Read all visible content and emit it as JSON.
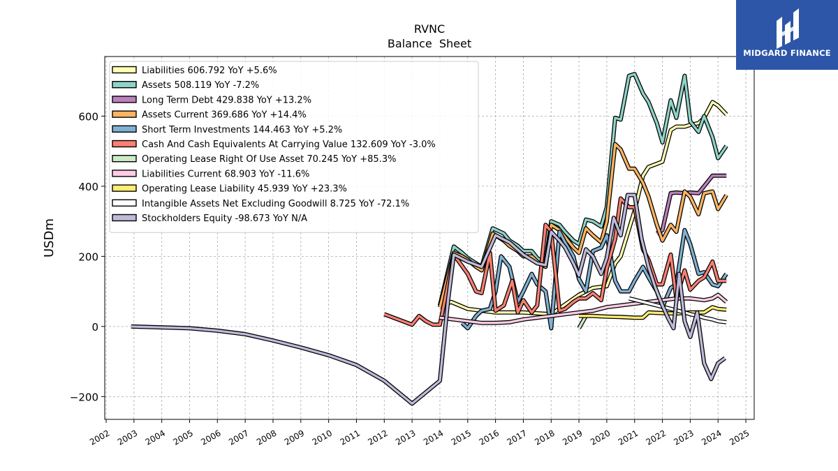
{
  "chart_data": {
    "type": "line",
    "title": "RVNC",
    "subtitle": "Balance  Sheet",
    "ylabel": "USDm",
    "xlabel": "",
    "xlim": [
      2001.95,
      2025.3
    ],
    "ylim": [
      -265,
      770
    ],
    "yticks": [
      -200,
      0,
      200,
      400,
      600
    ],
    "xticks": [
      2002,
      2003,
      2004,
      2005,
      2006,
      2007,
      2008,
      2009,
      2010,
      2011,
      2012,
      2013,
      2014,
      2015,
      2016,
      2017,
      2018,
      2019,
      2020,
      2021,
      2022,
      2023,
      2024,
      2025
    ],
    "grid": true,
    "legend_position": "top-left",
    "series": [
      {
        "name": "Liabilities",
        "legend": "Liabilities  606.792 YoY +5.6%",
        "color": "#ffffb3",
        "x": [
          2014.0,
          2014.4,
          2015.0,
          2016.0,
          2017.0,
          2018.0,
          2019.0,
          2019.5,
          2020.0,
          2020.3,
          2020.5,
          2021.0,
          2021.3,
          2021.5,
          2022.0,
          2022.3,
          2022.5,
          2022.8,
          2023.0,
          2023.3,
          2023.5,
          2023.8,
          2024.0,
          2024.3
        ],
        "y": [
          55,
          70,
          50,
          40,
          40,
          35,
          90,
          110,
          115,
          180,
          200,
          330,
          430,
          455,
          470,
          560,
          570,
          570,
          575,
          580,
          595,
          640,
          630,
          605
        ]
      },
      {
        "name": "Assets",
        "legend": "Assets  508.119 YoY -7.2%",
        "color": "#8dd3c7",
        "x": [
          2014.0,
          2014.5,
          2014.8,
          2015.0,
          2015.3,
          2015.5,
          2015.9,
          2016.3,
          2016.5,
          2016.8,
          2017.0,
          2017.3,
          2017.5,
          2017.8,
          2018.0,
          2018.3,
          2018.5,
          2018.8,
          2019.0,
          2019.25,
          2019.5,
          2019.8,
          2020.0,
          2020.3,
          2020.5,
          2020.8,
          2021.0,
          2021.3,
          2021.5,
          2021.8,
          2022.0,
          2022.3,
          2022.5,
          2022.8,
          2023.0,
          2023.3,
          2023.5,
          2023.8,
          2024.0,
          2024.3
        ],
        "y": [
          60,
          228,
          210,
          195,
          180,
          170,
          280,
          265,
          245,
          230,
          215,
          215,
          195,
          180,
          300,
          290,
          270,
          245,
          235,
          305,
          300,
          285,
          340,
          595,
          590,
          715,
          720,
          665,
          640,
          580,
          525,
          645,
          595,
          715,
          585,
          555,
          600,
          540,
          480,
          515
        ]
      },
      {
        "name": "Long Term Debt",
        "legend": "Long Term Debt  429.838 YoY +13.2%",
        "color": "#bc80bd",
        "x": [
          2021.8,
          2022.0,
          2022.3,
          2022.5,
          2022.8,
          2023.0,
          2023.3,
          2023.5,
          2023.8,
          2024.0,
          2024.3
        ],
        "y": [
          265,
          275,
          380,
          382,
          380,
          382,
          380,
          400,
          430,
          430,
          430
        ]
      },
      {
        "name": "Assets Current",
        "legend": "Assets Current  369.686 YoY +14.4%",
        "color": "#fdb462",
        "x": [
          2014.0,
          2014.5,
          2014.8,
          2015.0,
          2015.3,
          2015.5,
          2015.9,
          2016.3,
          2016.5,
          2016.8,
          2017.0,
          2017.3,
          2017.5,
          2017.8,
          2018.0,
          2018.3,
          2018.5,
          2018.8,
          2019.0,
          2019.25,
          2019.5,
          2019.8,
          2020.0,
          2020.3,
          2020.5,
          2020.8,
          2021.0,
          2021.3,
          2021.5,
          2021.8,
          2022.0,
          2022.3,
          2022.5,
          2022.8,
          2023.0,
          2023.3,
          2023.5,
          2023.8,
          2024.0,
          2024.3
        ],
        "y": [
          55,
          210,
          200,
          190,
          170,
          160,
          265,
          245,
          230,
          215,
          200,
          200,
          185,
          170,
          290,
          275,
          255,
          225,
          210,
          280,
          260,
          240,
          300,
          520,
          505,
          450,
          450,
          410,
          370,
          290,
          245,
          290,
          270,
          385,
          370,
          320,
          380,
          385,
          335,
          375
        ]
      },
      {
        "name": "Short Term Investments",
        "legend": "Short Term Investments  144.463 YoY +5.2%",
        "color": "#80b1d3",
        "x": [
          2014.8,
          2015.0,
          2015.3,
          2015.5,
          2015.8,
          2016.0,
          2016.2,
          2016.5,
          2016.8,
          2017.0,
          2017.3,
          2017.5,
          2017.8,
          2018.0,
          2018.3,
          2018.5,
          2018.8,
          2019.0,
          2019.25,
          2019.5,
          2019.8,
          2020.0,
          2020.3,
          2020.5,
          2020.8,
          2021.0,
          2021.3,
          2021.5,
          2021.8,
          2022.0,
          2022.3,
          2022.5,
          2022.8,
          2023.0,
          2023.3,
          2023.5,
          2023.8,
          2024.0,
          2024.3
        ],
        "y": [
          10,
          -5,
          30,
          45,
          50,
          100,
          200,
          170,
          70,
          100,
          150,
          120,
          100,
          -5,
          270,
          240,
          200,
          135,
          100,
          215,
          225,
          260,
          130,
          100,
          100,
          130,
          170,
          140,
          100,
          55,
          110,
          120,
          275,
          235,
          150,
          155,
          120,
          115,
          150
        ]
      },
      {
        "name": "Cash And Cash Equivalents At Carrying Value",
        "legend": "Cash And Cash Equivalents At Carrying Value  132.609 YoY -3.0%",
        "color": "#fb8072",
        "x": [
          2012.0,
          2013.0,
          2013.25,
          2013.5,
          2013.75,
          2014.0,
          2014.5,
          2015.0,
          2015.3,
          2015.5,
          2015.8,
          2016.0,
          2016.3,
          2016.6,
          2016.8,
          2017.0,
          2017.3,
          2017.5,
          2017.8,
          2018.0,
          2018.3,
          2018.5,
          2018.8,
          2019.0,
          2019.25,
          2019.5,
          2019.8,
          2020.0,
          2020.3,
          2020.5,
          2020.8,
          2021.0,
          2021.3,
          2021.5,
          2021.8,
          2022.0,
          2022.3,
          2022.5,
          2022.8,
          2023.0,
          2023.3,
          2023.5,
          2023.8,
          2024.0,
          2024.3
        ],
        "y": [
          35,
          5,
          30,
          15,
          5,
          5,
          205,
          150,
          100,
          95,
          210,
          45,
          60,
          130,
          40,
          75,
          40,
          60,
          290,
          270,
          45,
          50,
          70,
          80,
          80,
          95,
          75,
          165,
          250,
          365,
          340,
          340,
          220,
          190,
          120,
          120,
          205,
          80,
          160,
          105,
          130,
          140,
          185,
          130,
          130
        ]
      },
      {
        "name": "Operating Lease Right Of Use Asset",
        "legend": "Operating Lease Right Of Use Asset  70.245 YoY +85.3%",
        "color": "#ccebc5",
        "x": [
          2019.0,
          2019.25
        ],
        "y": [
          -5,
          30
        ]
      },
      {
        "name": "Liabilities Current",
        "legend": "Liabilities Current  68.903 YoY -11.6%",
        "color": "#fccde5",
        "x": [
          2014.0,
          2014.5,
          2015.0,
          2015.5,
          2016.0,
          2016.5,
          2017.0,
          2017.5,
          2018.0,
          2018.5,
          2019.0,
          2019.5,
          2020.0,
          2020.5,
          2021.0,
          2021.5,
          2022.0,
          2022.5,
          2023.0,
          2023.5,
          2023.8,
          2024.0,
          2024.3
        ],
        "y": [
          25,
          20,
          15,
          10,
          10,
          12,
          20,
          25,
          30,
          35,
          40,
          45,
          55,
          60,
          65,
          70,
          75,
          80,
          80,
          75,
          80,
          90,
          70
        ]
      },
      {
        "name": "Operating Lease Liability",
        "legend": "Operating Lease Liability  45.939 YoY +23.3%",
        "color": "#ffed6f",
        "x": [
          2019.0,
          2019.5,
          2020.0,
          2020.5,
          2021.0,
          2021.3,
          2021.5,
          2022.0,
          2022.5,
          2023.0,
          2023.5,
          2023.8,
          2024.0,
          2024.3
        ],
        "y": [
          30,
          30,
          28,
          27,
          25,
          25,
          40,
          38,
          37,
          40,
          40,
          55,
          50,
          48
        ]
      },
      {
        "name": "Intangible Assets Net Excluding Goodwill",
        "legend": "Intangible Assets Net Excluding Goodwill  8.725 YoY -72.1%",
        "color": "#ffffff",
        "x": [
          2020.8,
          2021.3,
          2021.8,
          2022.3,
          2022.8,
          2023.0,
          2023.3,
          2023.5,
          2023.8,
          2024.0,
          2024.3
        ],
        "y": [
          80,
          70,
          60,
          50,
          40,
          35,
          30,
          25,
          20,
          15,
          12
        ]
      },
      {
        "name": "Stockholders Equity",
        "legend": "Stockholders Equity  -98.673 YoY N/A",
        "color": "#bebada",
        "x": [
          2002.9,
          2005.0,
          2006.0,
          2007.0,
          2008.0,
          2009.0,
          2010.0,
          2011.0,
          2012.0,
          2013.0,
          2014.0,
          2014.3,
          2014.5,
          2015.0,
          2015.5,
          2016.0,
          2016.5,
          2017.0,
          2017.5,
          2017.8,
          2018.0,
          2018.3,
          2018.5,
          2018.8,
          2019.0,
          2019.25,
          2019.5,
          2019.8,
          2020.0,
          2020.25,
          2020.5,
          2020.75,
          2021.0,
          2021.25,
          2021.5,
          2021.75,
          2022.0,
          2022.2,
          2022.4,
          2022.6,
          2022.8,
          2023.0,
          2023.25,
          2023.5,
          2023.75,
          2024.0,
          2024.25
        ],
        "y": [
          0,
          -5,
          -12,
          -22,
          -40,
          -60,
          -82,
          -110,
          -155,
          -220,
          -155,
          80,
          205,
          185,
          170,
          260,
          240,
          205,
          180,
          175,
          270,
          245,
          225,
          180,
          145,
          220,
          200,
          150,
          195,
          310,
          260,
          375,
          375,
          250,
          170,
          110,
          60,
          25,
          -5,
          150,
          15,
          -30,
          40,
          -105,
          -150,
          -105,
          -90
        ]
      }
    ]
  },
  "logo": {
    "text": "MIDGARD FINANCE"
  }
}
